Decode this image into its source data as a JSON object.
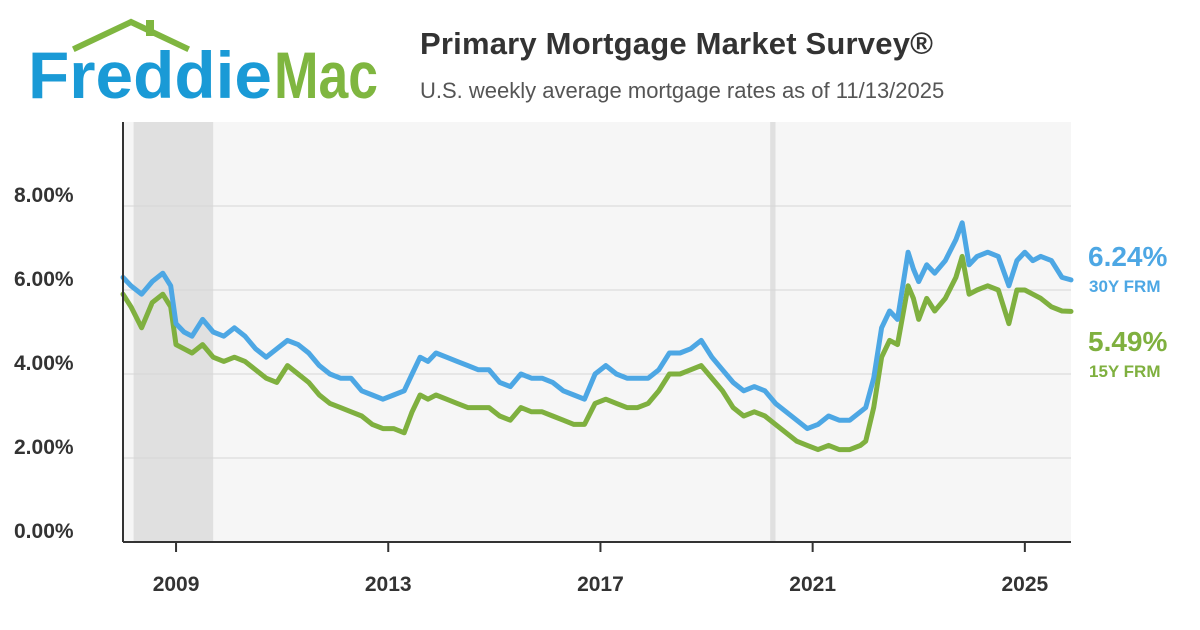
{
  "header": {
    "logo_text_1": "Freddie",
    "logo_text_2": "Mac",
    "title": "Primary Mortgage Market Survey®",
    "subtitle": "U.S. weekly average mortgage rates as of 11/13/2025"
  },
  "colors": {
    "brand_blue": "#1a9ad6",
    "brand_green": "#7fb640",
    "series_30y": "#4da7e4",
    "series_15y": "#7fb03f",
    "recession_shade": "#e0e0e0",
    "plot_background": "#f6f6f6"
  },
  "chart_data": {
    "type": "line",
    "title": "Primary Mortgage Market Survey®",
    "subtitle": "U.S. weekly average mortgage rates as of 11/13/2025",
    "xlabel": "",
    "ylabel": "",
    "xlim": [
      2008.0,
      2025.87
    ],
    "ylim": [
      0,
      10
    ],
    "y_ticks": [
      "0.00%",
      "2.00%",
      "4.00%",
      "6.00%",
      "8.00%"
    ],
    "y_tick_values": [
      0,
      2,
      4,
      6,
      8
    ],
    "x_ticks": [
      "2009",
      "2013",
      "2017",
      "2021",
      "2025"
    ],
    "x_tick_values": [
      2009,
      2013,
      2017,
      2021,
      2025
    ],
    "grid": true,
    "legend": "right-end-labels",
    "recessions": [
      [
        2008.2,
        2009.7
      ],
      [
        2020.2,
        2020.3
      ]
    ],
    "series": [
      {
        "name": "30Y FRM",
        "end_label": "6.24%",
        "x": [
          2008.0,
          2008.15,
          2008.35,
          2008.55,
          2008.75,
          2008.9,
          2009.0,
          2009.15,
          2009.3,
          2009.5,
          2009.7,
          2009.9,
          2010.1,
          2010.3,
          2010.5,
          2010.7,
          2010.9,
          2011.1,
          2011.3,
          2011.5,
          2011.7,
          2011.9,
          2012.1,
          2012.3,
          2012.5,
          2012.7,
          2012.9,
          2013.1,
          2013.3,
          2013.45,
          2013.6,
          2013.75,
          2013.9,
          2014.1,
          2014.3,
          2014.5,
          2014.7,
          2014.9,
          2015.1,
          2015.3,
          2015.5,
          2015.7,
          2015.9,
          2016.1,
          2016.3,
          2016.5,
          2016.7,
          2016.9,
          2017.1,
          2017.3,
          2017.5,
          2017.7,
          2017.9,
          2018.1,
          2018.3,
          2018.5,
          2018.7,
          2018.9,
          2019.1,
          2019.3,
          2019.5,
          2019.7,
          2019.9,
          2020.1,
          2020.3,
          2020.5,
          2020.7,
          2020.9,
          2021.1,
          2021.3,
          2021.5,
          2021.7,
          2021.9,
          2022.0,
          2022.15,
          2022.3,
          2022.45,
          2022.6,
          2022.8,
          2022.9,
          2023.0,
          2023.15,
          2023.3,
          2023.5,
          2023.7,
          2023.82,
          2023.95,
          2024.1,
          2024.3,
          2024.5,
          2024.7,
          2024.85,
          2025.0,
          2025.15,
          2025.3,
          2025.5,
          2025.7,
          2025.87
        ],
        "values": [
          6.3,
          6.1,
          5.9,
          6.2,
          6.4,
          6.1,
          5.2,
          5.0,
          4.9,
          5.3,
          5.0,
          4.9,
          5.1,
          4.9,
          4.6,
          4.4,
          4.6,
          4.8,
          4.7,
          4.5,
          4.2,
          4.0,
          3.9,
          3.9,
          3.6,
          3.5,
          3.4,
          3.5,
          3.6,
          4.0,
          4.4,
          4.3,
          4.5,
          4.4,
          4.3,
          4.2,
          4.1,
          4.1,
          3.8,
          3.7,
          4.0,
          3.9,
          3.9,
          3.8,
          3.6,
          3.5,
          3.4,
          4.0,
          4.2,
          4.0,
          3.9,
          3.9,
          3.9,
          4.1,
          4.5,
          4.5,
          4.6,
          4.8,
          4.4,
          4.1,
          3.8,
          3.6,
          3.7,
          3.6,
          3.3,
          3.1,
          2.9,
          2.7,
          2.8,
          3.0,
          2.9,
          2.9,
          3.1,
          3.2,
          3.9,
          5.1,
          5.5,
          5.3,
          6.9,
          6.5,
          6.2,
          6.6,
          6.4,
          6.7,
          7.2,
          7.6,
          6.6,
          6.8,
          6.9,
          6.8,
          6.1,
          6.7,
          6.9,
          6.7,
          6.8,
          6.7,
          6.3,
          6.24
        ]
      },
      {
        "name": "15Y FRM",
        "end_label": "5.49%",
        "x": [
          2008.0,
          2008.15,
          2008.35,
          2008.55,
          2008.75,
          2008.9,
          2009.0,
          2009.15,
          2009.3,
          2009.5,
          2009.7,
          2009.9,
          2010.1,
          2010.3,
          2010.5,
          2010.7,
          2010.9,
          2011.1,
          2011.3,
          2011.5,
          2011.7,
          2011.9,
          2012.1,
          2012.3,
          2012.5,
          2012.7,
          2012.9,
          2013.1,
          2013.3,
          2013.45,
          2013.6,
          2013.75,
          2013.9,
          2014.1,
          2014.3,
          2014.5,
          2014.7,
          2014.9,
          2015.1,
          2015.3,
          2015.5,
          2015.7,
          2015.9,
          2016.1,
          2016.3,
          2016.5,
          2016.7,
          2016.9,
          2017.1,
          2017.3,
          2017.5,
          2017.7,
          2017.9,
          2018.1,
          2018.3,
          2018.5,
          2018.7,
          2018.9,
          2019.1,
          2019.3,
          2019.5,
          2019.7,
          2019.9,
          2020.1,
          2020.3,
          2020.5,
          2020.7,
          2020.9,
          2021.1,
          2021.3,
          2021.5,
          2021.7,
          2021.9,
          2022.0,
          2022.15,
          2022.3,
          2022.45,
          2022.6,
          2022.8,
          2022.9,
          2023.0,
          2023.15,
          2023.3,
          2023.5,
          2023.7,
          2023.82,
          2023.95,
          2024.1,
          2024.3,
          2024.5,
          2024.7,
          2024.85,
          2025.0,
          2025.15,
          2025.3,
          2025.5,
          2025.7,
          2025.87
        ],
        "values": [
          5.9,
          5.6,
          5.1,
          5.7,
          5.9,
          5.6,
          4.7,
          4.6,
          4.5,
          4.7,
          4.4,
          4.3,
          4.4,
          4.3,
          4.1,
          3.9,
          3.8,
          4.2,
          4.0,
          3.8,
          3.5,
          3.3,
          3.2,
          3.1,
          3.0,
          2.8,
          2.7,
          2.7,
          2.6,
          3.1,
          3.5,
          3.4,
          3.5,
          3.4,
          3.3,
          3.2,
          3.2,
          3.2,
          3.0,
          2.9,
          3.2,
          3.1,
          3.1,
          3.0,
          2.9,
          2.8,
          2.8,
          3.3,
          3.4,
          3.3,
          3.2,
          3.2,
          3.3,
          3.6,
          4.0,
          4.0,
          4.1,
          4.2,
          3.9,
          3.6,
          3.2,
          3.0,
          3.1,
          3.0,
          2.8,
          2.6,
          2.4,
          2.3,
          2.2,
          2.3,
          2.2,
          2.2,
          2.3,
          2.4,
          3.2,
          4.4,
          4.8,
          4.7,
          6.1,
          5.8,
          5.3,
          5.8,
          5.5,
          5.8,
          6.3,
          6.8,
          5.9,
          6.0,
          6.1,
          6.0,
          5.2,
          6.0,
          6.0,
          5.9,
          5.8,
          5.6,
          5.5,
          5.49
        ]
      }
    ]
  }
}
